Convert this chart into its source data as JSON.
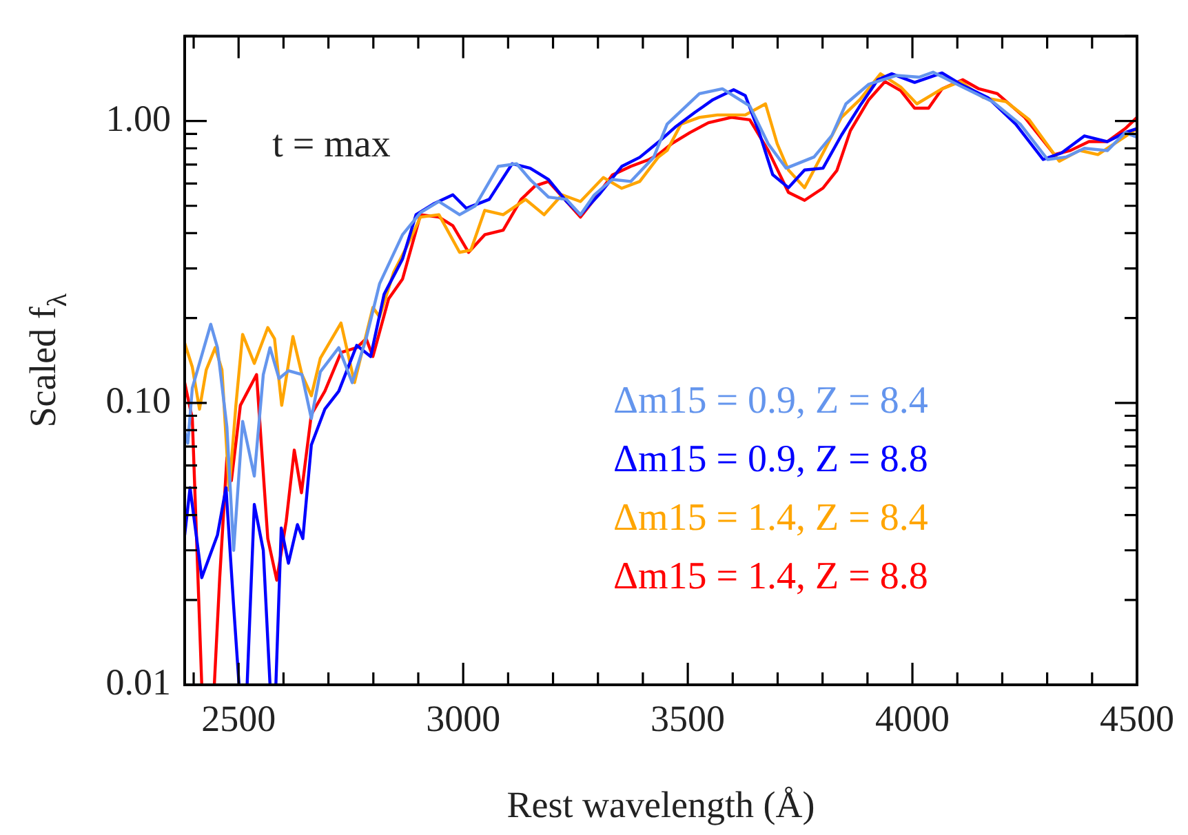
{
  "chart_data": {
    "type": "line",
    "xlabel": "Rest wavelength (Å)",
    "ylabel": "Scaled f$_{λ}$",
    "annotations": [
      "t = max"
    ],
    "log": "y",
    "legend": "right",
    "line_style": "solid",
    "marker": "none",
    "xlim": [
      2380,
      4500
    ],
    "ylim": [
      0.01,
      2
    ],
    "xticks": [
      {
        "value": 2400,
        "label": null
      },
      2500,
      {
        "value": 2600,
        "label": null
      },
      {
        "value": 2700,
        "label": null
      },
      {
        "value": 2800,
        "label": null
      },
      {
        "value": 2900,
        "label": null
      },
      3000,
      {
        "value": 3100,
        "label": null
      },
      {
        "value": 3200,
        "label": null
      },
      {
        "value": 3300,
        "label": null
      },
      {
        "value": 3400,
        "label": null
      },
      3500,
      {
        "value": 3600,
        "label": null
      },
      {
        "value": 3700,
        "label": null
      },
      {
        "value": 3800,
        "label": null
      },
      {
        "value": 3900,
        "label": null
      },
      4000,
      {
        "value": 4100,
        "label": null
      },
      {
        "value": 4200,
        "label": null
      },
      {
        "value": 4300,
        "label": null
      },
      {
        "value": 4400,
        "label": null
      },
      4500
    ],
    "yticks": [
      {
        "value": 0.01,
        "label": "0.01"
      },
      {
        "value": 0.02,
        "label": null
      },
      {
        "value": 0.03,
        "label": null
      },
      {
        "value": 0.04,
        "label": null
      },
      {
        "value": 0.05,
        "label": null
      },
      {
        "value": 0.06,
        "label": null
      },
      {
        "value": 0.07,
        "label": null
      },
      {
        "value": 0.08,
        "label": null
      },
      {
        "value": 0.09,
        "label": null
      },
      {
        "value": 0.1,
        "label": "0.10"
      },
      {
        "value": 0.2,
        "label": null
      },
      {
        "value": 0.3,
        "label": null
      },
      {
        "value": 0.4,
        "label": null
      },
      {
        "value": 0.5,
        "label": null
      },
      {
        "value": 0.6,
        "label": null
      },
      {
        "value": 0.7,
        "label": null
      },
      {
        "value": 0.8,
        "label": null
      },
      {
        "value": 0.9,
        "label": null
      },
      {
        "value": 1,
        "label": "1.00"
      },
      {
        "value": 2,
        "label": null
      }
    ],
    "series": [
      {
        "name": "Δm15 = 0.9, Z = 8.4",
        "color": "#6495ed",
        "x": [
          2380,
          2387,
          2397,
          2438,
          2453,
          2474,
          2489,
          2509,
          2535,
          2555,
          2570,
          2590,
          2611,
          2641,
          2662,
          2682,
          2723,
          2753,
          2784,
          2814,
          2865,
          2905,
          2946,
          2992,
          3027,
          3078,
          3119,
          3149,
          3190,
          3230,
          3261,
          3292,
          3332,
          3373,
          3424,
          3454,
          3526,
          3577,
          3638,
          3679,
          3719,
          3781,
          3821,
          3852,
          3903,
          3964,
          4015,
          4046,
          4107,
          4179,
          4240,
          4301,
          4342,
          4383,
          4434,
          4474,
          4500
        ],
        "values": [
          0.079,
          0.072,
          0.113,
          0.19,
          0.157,
          0.082,
          0.03,
          0.086,
          0.055,
          0.126,
          0.157,
          0.122,
          0.13,
          0.126,
          0.088,
          0.129,
          0.157,
          0.118,
          0.169,
          0.265,
          0.395,
          0.473,
          0.518,
          0.465,
          0.5,
          0.69,
          0.705,
          0.62,
          0.537,
          0.527,
          0.465,
          0.547,
          0.62,
          0.61,
          0.743,
          0.975,
          1.25,
          1.3,
          1.13,
          0.83,
          0.68,
          0.745,
          0.89,
          1.15,
          1.35,
          1.45,
          1.43,
          1.49,
          1.33,
          1.17,
          0.975,
          0.73,
          0.745,
          0.8,
          0.785,
          0.91,
          0.875
        ]
      },
      {
        "name": "Δm15 = 0.9, Z = 8.8",
        "color": "#0000ff",
        "x": [
          2380,
          2392,
          2418,
          2453,
          2472,
          2489,
          2501,
          2510,
          2519,
          2535,
          2555,
          2570,
          2576,
          2583,
          2595,
          2611,
          2631,
          2643,
          2662,
          2692,
          2723,
          2763,
          2794,
          2824,
          2865,
          2895,
          2936,
          2977,
          3007,
          3058,
          3109,
          3149,
          3190,
          3230,
          3261,
          3302,
          3353,
          3393,
          3434,
          3474,
          3515,
          3556,
          3602,
          3628,
          3658,
          3689,
          3724,
          3760,
          3801,
          3842,
          3883,
          3923,
          3954,
          4005,
          4066,
          4107,
          4168,
          4230,
          4291,
          4332,
          4383,
          4434,
          4474,
          4500
        ],
        "values": [
          0.034,
          0.05,
          0.024,
          0.034,
          0.05,
          0.019,
          0.01,
          null,
          0.01,
          0.0436,
          0.03,
          0.01,
          null,
          0.01,
          0.036,
          0.027,
          0.037,
          0.033,
          0.071,
          0.095,
          0.11,
          0.16,
          0.146,
          0.243,
          0.324,
          0.465,
          0.51,
          0.547,
          0.49,
          0.527,
          0.705,
          0.68,
          0.62,
          0.518,
          0.465,
          0.547,
          0.69,
          0.743,
          0.84,
          0.957,
          1.07,
          1.19,
          1.29,
          1.23,
          0.92,
          0.645,
          0.58,
          0.67,
          0.68,
          0.89,
          1.13,
          1.4,
          1.47,
          1.37,
          1.48,
          1.35,
          1.21,
          0.975,
          0.73,
          0.77,
          0.885,
          0.845,
          0.91,
          0.94
        ]
      },
      {
        "name": "Δm15 = 1.4, Z = 8.4",
        "color": "#ffa500",
        "x": [
          2380,
          2397,
          2413,
          2428,
          2448,
          2463,
          2479,
          2494,
          2509,
          2535,
          2565,
          2580,
          2596,
          2621,
          2641,
          2662,
          2682,
          2728,
          2758,
          2799,
          2814,
          2845,
          2875,
          2905,
          2946,
          2992,
          3017,
          3048,
          3089,
          3139,
          3180,
          3220,
          3261,
          3312,
          3353,
          3393,
          3434,
          3454,
          3485,
          3526,
          3566,
          3628,
          3673,
          3699,
          3724,
          3760,
          3801,
          3842,
          3883,
          3929,
          3974,
          4010,
          4066,
          4107,
          4158,
          4209,
          4260,
          4327,
          4372,
          4413,
          4464,
          4500
        ],
        "values": [
          0.163,
          0.134,
          0.095,
          0.131,
          0.157,
          0.131,
          0.049,
          0.098,
          0.175,
          0.138,
          0.185,
          0.169,
          0.098,
          0.172,
          0.126,
          0.106,
          0.144,
          0.192,
          0.118,
          0.218,
          0.202,
          0.29,
          0.36,
          0.456,
          0.465,
          0.342,
          0.348,
          0.482,
          0.465,
          0.527,
          0.465,
          0.547,
          0.518,
          0.63,
          0.577,
          0.61,
          0.743,
          0.786,
          0.975,
          1.03,
          1.05,
          1.05,
          1.15,
          0.83,
          0.67,
          0.58,
          0.77,
          1.03,
          1.19,
          1.47,
          1.32,
          1.15,
          1.3,
          1.38,
          1.21,
          1.17,
          1.01,
          0.72,
          0.786,
          0.76,
          0.86,
          0.94
        ]
      },
      {
        "name": "Δm15 = 1.4, Z = 8.8",
        "color": "#ff0000",
        "x": [
          2380,
          2397,
          2418,
          2432,
          2446,
          2458,
          2474,
          2484,
          2504,
          2540,
          2565,
          2585,
          2606,
          2624,
          2640,
          2662,
          2692,
          2728,
          2763,
          2784,
          2799,
          2834,
          2865,
          2905,
          2946,
          2977,
          3012,
          3048,
          3089,
          3129,
          3160,
          3190,
          3226,
          3261,
          3292,
          3332,
          3373,
          3414,
          3434,
          3464,
          3505,
          3546,
          3597,
          3638,
          3679,
          3724,
          3760,
          3801,
          3832,
          3862,
          3903,
          3939,
          3974,
          4005,
          4036,
          4066,
          4112,
          4148,
          4189,
          4250,
          4316,
          4352,
          4393,
          4434,
          4474,
          4500
        ],
        "values": [
          0.118,
          0.088,
          0.01,
          null,
          0.01,
          0.024,
          0.064,
          0.053,
          0.098,
          0.126,
          0.033,
          0.0235,
          0.038,
          0.068,
          0.048,
          0.091,
          0.11,
          0.151,
          0.157,
          0.169,
          0.146,
          0.234,
          0.275,
          0.465,
          0.456,
          0.425,
          0.342,
          0.395,
          0.41,
          0.527,
          0.588,
          0.61,
          0.527,
          0.456,
          0.527,
          0.643,
          0.69,
          0.73,
          0.76,
          0.83,
          0.91,
          0.986,
          1.03,
          1.01,
          0.786,
          0.558,
          0.523,
          0.578,
          0.668,
          0.924,
          1.19,
          1.38,
          1.28,
          1.11,
          1.11,
          1.3,
          1.4,
          1.3,
          1.25,
          1.03,
          0.76,
          0.786,
          0.845,
          0.845,
          0.94,
          1.03
        ]
      }
    ]
  }
}
